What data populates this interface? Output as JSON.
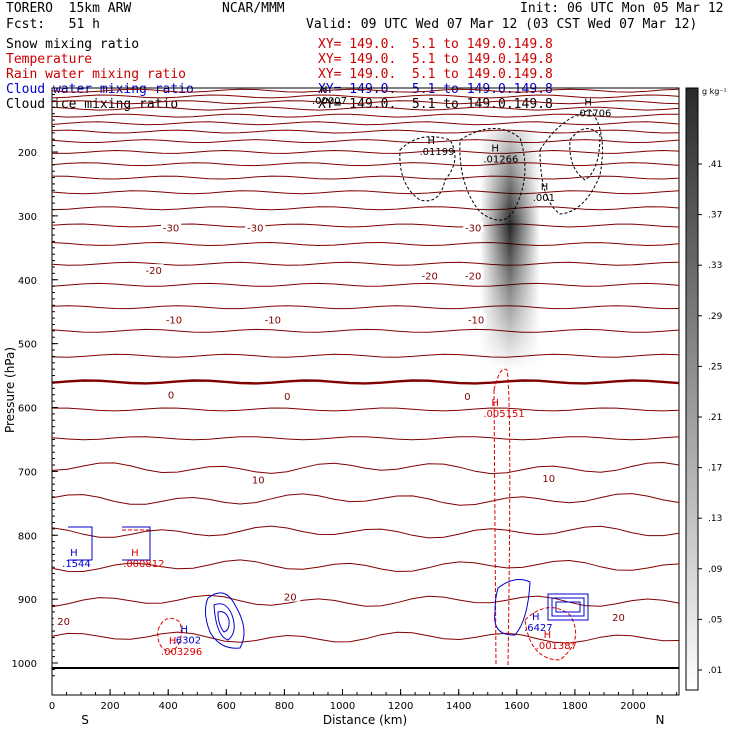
{
  "header": {
    "model": "TORERO  15km ARW",
    "org": "NCAR/MMM",
    "init": "Init: 06 UTC Mon 05 Mar 12",
    "fcst": "Fcst:   51 h",
    "valid": "Valid: 09 UTC Wed 07 Mar 12 (03 CST Wed 07 Mar 12)"
  },
  "legend": [
    {
      "label": "Snow mixing ratio",
      "xy": "XY= 149.0.  5.1 to 149.0.149.8",
      "color": "#000000"
    },
    {
      "label": "Temperature",
      "xy": "XY= 149.0.  5.1 to 149.0.149.8",
      "color": "#cc0000"
    },
    {
      "label": "Rain water mixing ratio",
      "xy": "XY= 149.0.  5.1 to 149.0.149.8",
      "color": "#cc0000"
    },
    {
      "label": "Cloud water mixing ratio",
      "xy": "XY= 149.0.  5.1 to 149.0.149.8",
      "color": "#0000cc"
    },
    {
      "label": "Cloud ice mixing ratio",
      "xy": "XY= 149.0.  5.1 to 149.0.149.8",
      "color": "#000000"
    }
  ],
  "colors": {
    "temperature": "#800000",
    "rain": "#dd0000",
    "cloud_water": "#0000cc",
    "cloud_ice": "#000000"
  },
  "chart_data": {
    "type": "cross-section",
    "xlabel": "Distance (km)",
    "ylabel": "Pressure (hPa)",
    "xlim": [
      0,
      2180
    ],
    "ylim": [
      100,
      1025
    ],
    "x_ticks": [
      "0",
      "200",
      "400",
      "600",
      "800",
      "1000",
      "1200",
      "1400",
      "1600",
      "1800",
      "2000"
    ],
    "y_ticks": [
      "200",
      "300",
      "400",
      "500",
      "600",
      "700",
      "800",
      "900",
      "1000"
    ],
    "x_end_labels": {
      "left": "S",
      "right": "N"
    },
    "colorbar": {
      "unit": "g kg⁻¹",
      "ticks": [
        ".41",
        ".37",
        ".33",
        ".29",
        ".25",
        ".21",
        ".17",
        ".13",
        ".09",
        ".05",
        ".01"
      ]
    },
    "temperature_labels": [
      {
        "x": 410,
        "p": 318,
        "text": "-30"
      },
      {
        "x": 700,
        "p": 318,
        "text": "-30"
      },
      {
        "x": 1450,
        "p": 318,
        "text": "-30"
      },
      {
        "x": 350,
        "p": 385,
        "text": "-20"
      },
      {
        "x": 1300,
        "p": 393,
        "text": "-20"
      },
      {
        "x": 1450,
        "p": 393,
        "text": "-20"
      },
      {
        "x": 420,
        "p": 462,
        "text": "-10"
      },
      {
        "x": 760,
        "p": 462,
        "text": "-10"
      },
      {
        "x": 1460,
        "p": 462,
        "text": "-10"
      },
      {
        "x": 410,
        "p": 580,
        "text": "0"
      },
      {
        "x": 810,
        "p": 582,
        "text": "0"
      },
      {
        "x": 1430,
        "p": 582,
        "text": "0"
      },
      {
        "x": 710,
        "p": 713,
        "text": "10"
      },
      {
        "x": 1710,
        "p": 710,
        "text": "10"
      },
      {
        "x": 820,
        "p": 896,
        "text": "20"
      },
      {
        "x": 40,
        "p": 934,
        "text": "20"
      },
      {
        "x": 1950,
        "p": 928,
        "text": "20"
      }
    ],
    "extrema_labels": [
      {
        "x": 950,
        "p": 120,
        "text": ".00007",
        "color": "#000000"
      },
      {
        "x": 1320,
        "p": 200,
        "text": ".01199",
        "color": "#000000"
      },
      {
        "x": 1540,
        "p": 212,
        "text": ".01266",
        "color": "#000000"
      },
      {
        "x": 1860,
        "p": 140,
        "text": ".01706",
        "color": "#000000"
      },
      {
        "x": 1710,
        "p": 272,
        "text": ".001",
        "color": "#000000"
      },
      {
        "x": 1540,
        "p": 610,
        "text": ".005151",
        "color": "#dd0000"
      },
      {
        "x": 90,
        "p": 845,
        "text": ".1544",
        "color": "#0000cc"
      },
      {
        "x": 300,
        "p": 845,
        "text": ".000812",
        "color": "#dd0000"
      },
      {
        "x": 430,
        "p": 983,
        "text": ".003296",
        "color": "#dd0000"
      },
      {
        "x": 470,
        "p": 965,
        "text": ".6302",
        "color": "#0000cc"
      },
      {
        "x": 1680,
        "p": 945,
        "text": ".6427",
        "color": "#0000cc"
      },
      {
        "x": 1720,
        "p": 973,
        "text": ".001387",
        "color": "#dd0000"
      }
    ]
  }
}
